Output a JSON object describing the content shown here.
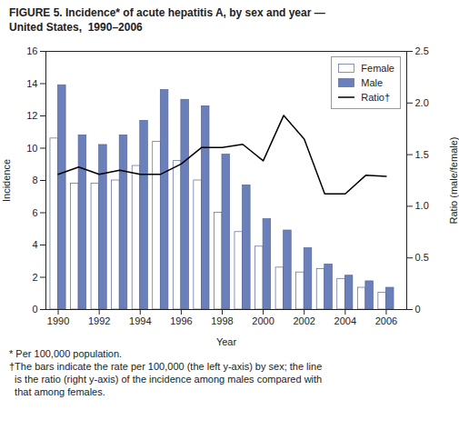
{
  "chart_data": {
    "type": "bar",
    "title": "FIGURE 5. Incidence* of acute hepatitis A, by sex and year —",
    "subtitle": "United States,  1990–2006",
    "annotations": [
      "* Per 100,000 population.",
      "†The bars indicate the rate per 100,000 (the left y-axis) by sex; the line",
      "  is the ratio (right y-axis) of the incidence among males compared with",
      "  that among females."
    ],
    "x": [
      1990,
      1991,
      1992,
      1993,
      1994,
      1995,
      1996,
      1997,
      1998,
      1999,
      2000,
      2001,
      2002,
      2003,
      2004,
      2005,
      2006
    ],
    "xlabel": "Year",
    "ylabel": "Incidence",
    "y2label": "Ratio (male/female)",
    "xlim": [
      1989.4,
      2007.0
    ],
    "xticks": [
      1990,
      1992,
      1994,
      1996,
      1998,
      2000,
      2002,
      2004,
      2006
    ],
    "ylim": [
      0,
      16
    ],
    "yticks": [
      0,
      2,
      4,
      6,
      8,
      10,
      12,
      14,
      16
    ],
    "y2lim": [
      0,
      2.5
    ],
    "y2ticks": [
      0,
      0.5,
      {
        "value": 1.0,
        "label": "1.0"
      },
      1.5,
      {
        "value": 2.0,
        "label": "2.0"
      },
      2.5
    ],
    "series": [
      {
        "name": "Female",
        "type": "bar",
        "color": "#ffffff",
        "values": [
          10.6,
          7.8,
          7.8,
          8.0,
          8.9,
          10.4,
          9.2,
          8.0,
          6.0,
          4.8,
          3.9,
          2.6,
          2.3,
          2.5,
          1.9,
          1.35,
          1.05
        ]
      },
      {
        "name": "Male",
        "type": "bar",
        "color": "#6b80bb",
        "values": [
          13.9,
          10.8,
          10.2,
          10.8,
          11.7,
          13.6,
          13.0,
          12.6,
          9.6,
          7.7,
          5.6,
          4.9,
          3.8,
          2.8,
          2.1,
          1.75,
          1.35
        ]
      },
      {
        "name": "Ratio†",
        "type": "line",
        "axis": "y2",
        "color": "#000000",
        "values": [
          1.31,
          1.38,
          1.31,
          1.35,
          1.31,
          1.31,
          1.41,
          1.57,
          1.57,
          1.6,
          1.44,
          1.88,
          1.65,
          1.12,
          1.12,
          1.3,
          1.29
        ]
      }
    ],
    "legend": "upper right",
    "grid": false
  }
}
